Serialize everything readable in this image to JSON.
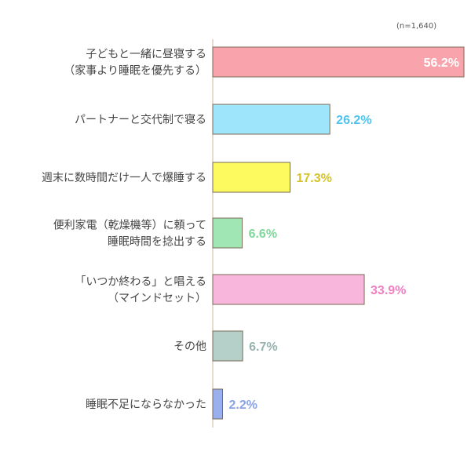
{
  "note": "(n=1,640)",
  "chart_data": {
    "type": "bar",
    "orientation": "horizontal",
    "categories": [
      [
        "子どもと一緒に昼寝する",
        "（家事より睡眠を優先する）"
      ],
      [
        "パートナーと交代制で寝る"
      ],
      [
        "週末に数時間だけ一人で爆睡する"
      ],
      [
        "便利家電（乾燥機等）に頼って",
        "睡眠時間を捻出する"
      ],
      [
        "「いつか終わる」と唱える",
        "（マインドセット）"
      ],
      [
        "その他"
      ],
      [
        "睡眠不足にならなかった"
      ]
    ],
    "values": [
      56.2,
      26.2,
      17.3,
      6.6,
      33.9,
      6.7,
      2.2
    ],
    "value_labels": [
      "56.2%",
      "26.2%",
      "17.3%",
      "6.6%",
      "33.9%",
      "6.7%",
      "2.2%"
    ],
    "colors": [
      "#f9a3ad",
      "#9ee4fa",
      "#fdfa60",
      "#a0e6b4",
      "#f8b6dc",
      "#b5cfc9",
      "#9ab0ee"
    ],
    "label_colors": [
      "#ffffff",
      "#4ec3ef",
      "#d6c424",
      "#7fd79a",
      "#f27fc0",
      "#98b2ad",
      "#8aa3e8"
    ],
    "xlim": [
      0,
      56.2
    ]
  }
}
